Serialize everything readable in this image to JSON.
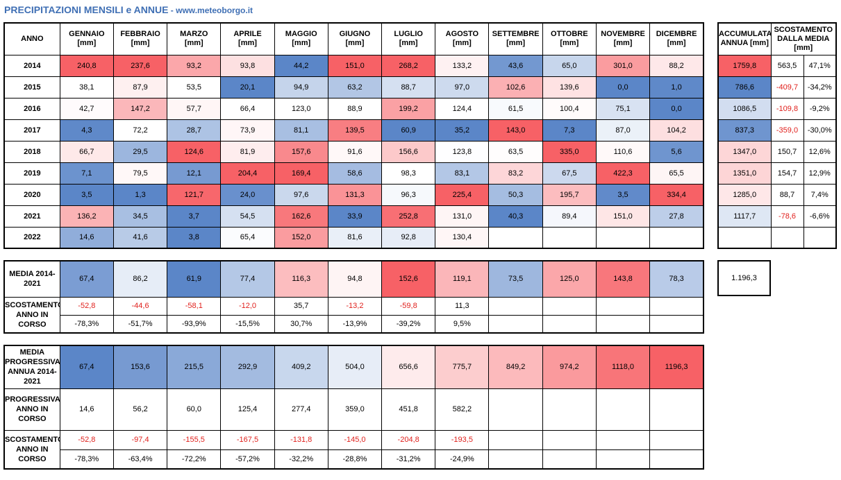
{
  "title": "PRECIPITAZIONI MENSILI e ANNUE",
  "site": " - www.meteoborgo.it",
  "colors": {
    "neg": "#e0201c",
    "accent": "#3f6fb4"
  },
  "main_table": {
    "year_label": "ANNO",
    "months": [
      "GENNAIO",
      "FEBBRAIO",
      "MARZO",
      "APRILE",
      "MAGGIO",
      "GIUGNO",
      "LUGLIO",
      "AGOSTO",
      "SETTEMBRE",
      "OTTOBRE",
      "NOVEMBRE",
      "DICEMBRE"
    ],
    "unit": "[mm]",
    "rows": [
      {
        "year": "2014",
        "values": [
          "240,8",
          "237,6",
          "93,2",
          "93,8",
          "44,2",
          "151,0",
          "268,2",
          "133,2",
          "43,6",
          "65,0",
          "301,0",
          "88,2"
        ]
      },
      {
        "year": "2015",
        "values": [
          "38,1",
          "87,9",
          "53,5",
          "20,1",
          "94,9",
          "63,2",
          "88,7",
          "97,0",
          "102,6",
          "139,6",
          "0,0",
          "1,0"
        ]
      },
      {
        "year": "2016",
        "values": [
          "42,7",
          "147,2",
          "57,7",
          "66,4",
          "123,0",
          "88,9",
          "199,2",
          "124,4",
          "61,5",
          "100,4",
          "75,1",
          "0,0"
        ]
      },
      {
        "year": "2017",
        "values": [
          "4,3",
          "72,2",
          "28,7",
          "73,9",
          "81,1",
          "139,5",
          "60,9",
          "35,2",
          "143,0",
          "7,3",
          "87,0",
          "104,2"
        ]
      },
      {
        "year": "2018",
        "values": [
          "66,7",
          "29,5",
          "124,6",
          "81,9",
          "157,6",
          "91,6",
          "156,6",
          "123,8",
          "63,5",
          "335,0",
          "110,6",
          "5,6"
        ]
      },
      {
        "year": "2019",
        "values": [
          "7,1",
          "79,5",
          "12,1",
          "204,4",
          "169,4",
          "58,6",
          "98,3",
          "83,1",
          "83,2",
          "67,5",
          "422,3",
          "65,5"
        ]
      },
      {
        "year": "2020",
        "values": [
          "3,5",
          "1,3",
          "121,7",
          "24,0",
          "97,6",
          "131,3",
          "96,3",
          "225,4",
          "50,3",
          "195,7",
          "3,5",
          "334,4"
        ]
      },
      {
        "year": "2021",
        "values": [
          "136,2",
          "34,5",
          "3,7",
          "54,5",
          "162,6",
          "33,9",
          "252,8",
          "131,0",
          "40,3",
          "89,4",
          "151,0",
          "27,8"
        ]
      },
      {
        "year": "2022",
        "values": [
          "14,6",
          "41,6",
          "3,8",
          "65,4",
          "152,0",
          "81,6",
          "92,8",
          "130,4",
          "",
          "",
          "",
          ""
        ]
      }
    ]
  },
  "annual_table": {
    "header_acc": "ACCUMULATA ANNUA [mm]",
    "header_dev": "SCOSTAMENTO DALLA MEDIA [mm]",
    "rows": [
      {
        "acc": "1759,8",
        "dev": "563,5",
        "pct": "47,1%"
      },
      {
        "acc": "786,6",
        "dev": "-409,7",
        "pct": "-34,2%"
      },
      {
        "acc": "1086,5",
        "dev": "-109,8",
        "pct": "-9,2%"
      },
      {
        "acc": "837,3",
        "dev": "-359,0",
        "pct": "-30,0%"
      },
      {
        "acc": "1347,0",
        "dev": "150,7",
        "pct": "12,6%"
      },
      {
        "acc": "1351,0",
        "dev": "154,7",
        "pct": "12,9%"
      },
      {
        "acc": "1285,0",
        "dev": "88,7",
        "pct": "7,4%"
      },
      {
        "acc": "1117,7",
        "dev": "-78,6",
        "pct": "-6,6%"
      },
      {
        "acc": "",
        "dev": "",
        "pct": ""
      }
    ]
  },
  "media": {
    "label": "MEDIA 2014-2021",
    "values": [
      "67,4",
      "86,2",
      "61,9",
      "77,4",
      "116,3",
      "94,8",
      "152,6",
      "119,1",
      "73,5",
      "125,0",
      "143,8",
      "78,3"
    ],
    "scost_label": "SCOSTAMENTO ANNO IN CORSO",
    "scost_mm": [
      "-52,8",
      "-44,6",
      "-58,1",
      "-12,0",
      "35,7",
      "-13,2",
      "-59,8",
      "11,3",
      "",
      "",
      "",
      ""
    ],
    "scost_pct": [
      "-78,3%",
      "-51,7%",
      "-93,9%",
      "-15,5%",
      "30,7%",
      "-13,9%",
      "-39,2%",
      "9,5%",
      "",
      "",
      "",
      ""
    ],
    "annual_mean": "1.196,3"
  },
  "progressive": {
    "label": "MEDIA PROGRESSIVA ANNUA 2014-2021",
    "values": [
      "67,4",
      "153,6",
      "215,5",
      "292,9",
      "409,2",
      "504,0",
      "656,6",
      "775,7",
      "849,2",
      "974,2",
      "1118,0",
      "1196,3"
    ],
    "current_label": "PROGRESSIVA ANNO IN CORSO",
    "current": [
      "14,6",
      "56,2",
      "60,0",
      "125,4",
      "277,4",
      "359,0",
      "451,8",
      "582,2",
      "",
      "",
      "",
      ""
    ],
    "scost_label": "SCOSTAMENTO ANNO IN CORSO",
    "scost_mm": [
      "-52,8",
      "-97,4",
      "-155,5",
      "-167,5",
      "-131,8",
      "-145,0",
      "-204,8",
      "-193,5",
      "",
      "",
      "",
      ""
    ],
    "scost_pct": [
      "-78,3%",
      "-63,4%",
      "-72,2%",
      "-57,2%",
      "-32,2%",
      "-28,8%",
      "-31,2%",
      "-24,9%",
      "",
      "",
      "",
      ""
    ]
  }
}
